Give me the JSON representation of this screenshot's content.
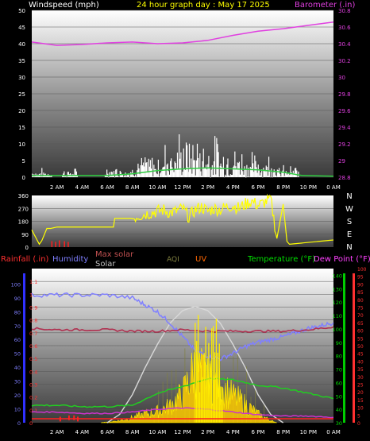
{
  "title": "24 hour graph day : May 17 2025",
  "colors": {
    "wind": "#ffffff",
    "gust_line": "#2ecc40",
    "baro": "#e040e0",
    "wdir": "#ffff00",
    "wdir_red": "#ff2020",
    "rain": "#ff3030",
    "humidity": "#7f7fff",
    "maxsolar": "#c0c0c0",
    "solar": "#ffcc00",
    "uv": "#ff6600",
    "aqi": "#808040",
    "temp": "#00dd00",
    "dew": "#ff40ff",
    "dewbar": "#ff3333",
    "humline": "#8080ff",
    "templine": "#22cc22",
    "dewline": "#cc33cc",
    "maroon": "#b03050"
  },
  "time_labels": [
    "2 AM",
    "4 AM",
    "6 AM",
    "8 AM",
    "10 AM",
    "12 PM",
    "2 PM",
    "4 PM",
    "6 PM",
    "8 PM",
    "10 PM",
    "0 AM"
  ],
  "chart_data": [
    {
      "type": "bar",
      "title": "24 hour graph day : May 17 2025",
      "ylabel_left": "Windspeed (mph)",
      "ylabel_right": "Barometer (.in)",
      "ylim_left": [
        0,
        50
      ],
      "yticks_left": [
        "0",
        "5",
        "10",
        "15",
        "20",
        "25",
        "30",
        "35",
        "40",
        "45",
        "50"
      ],
      "ylim_right": [
        28.8,
        30.8
      ],
      "yticks_right": [
        "28.8",
        "29",
        "29.2",
        "29.4",
        "29.6",
        "29.8",
        "30",
        "30.2",
        "30.4",
        "30.6",
        "30.8"
      ],
      "barometer": {
        "x": [
          0,
          2,
          4,
          6,
          8,
          10,
          12,
          14,
          16,
          18,
          20,
          22,
          24
        ],
        "y": [
          30.42,
          30.38,
          30.39,
          30.41,
          30.42,
          30.4,
          30.41,
          30.44,
          30.5,
          30.55,
          30.58,
          30.62,
          30.66
        ]
      },
      "wind_bursts": [
        {
          "x": [
            0,
            1.6
          ],
          "peak": 3
        },
        {
          "x": [
            2.4,
            3.6
          ],
          "peak": 3
        },
        {
          "x": [
            5.8,
            8
          ],
          "peak": 4
        },
        {
          "x": [
            8,
            10.5
          ],
          "peak": 8
        },
        {
          "x": [
            10.5,
            12.5
          ],
          "peak": 15
        },
        {
          "x": [
            12.5,
            15
          ],
          "peak": 14
        },
        {
          "x": [
            15,
            17
          ],
          "peak": 11
        },
        {
          "x": [
            17,
            19.5
          ],
          "peak": 9
        },
        {
          "x": [
            19.5,
            21.2
          ],
          "peak": 4
        }
      ],
      "gust_avg": {
        "x": [
          0,
          6,
          8,
          10,
          12,
          14,
          16,
          18,
          20,
          21.5,
          24
        ],
        "y": [
          0.5,
          0.5,
          1,
          2,
          2.5,
          2.8,
          2.5,
          2.2,
          1.5,
          0.5,
          0.3
        ]
      }
    },
    {
      "type": "line",
      "series_name": "Wind direction",
      "ylim": [
        0,
        360
      ],
      "yticks": [
        "0",
        "90",
        "180",
        "270",
        "360"
      ],
      "compass_labels": [
        "N",
        "W",
        "S",
        "E",
        "N"
      ],
      "direction": {
        "x": [
          0,
          0.6,
          0.8,
          1.2,
          1.5,
          2,
          4,
          6.5,
          6.6,
          8,
          8.5,
          9,
          9.5,
          10,
          10.5,
          11,
          11.5,
          12,
          12.5,
          13,
          13.5,
          14,
          14.5,
          15,
          15.5,
          16,
          16.5,
          17,
          17.5,
          18,
          18.5,
          19,
          19.5,
          20,
          20.3,
          20.5,
          24
        ],
        "y": [
          120,
          20,
          45,
          130,
          130,
          140,
          140,
          140,
          200,
          200,
          220,
          230,
          240,
          250,
          260,
          240,
          250,
          270,
          210,
          260,
          280,
          250,
          270,
          260,
          280,
          290,
          270,
          300,
          320,
          290,
          310,
          340,
          60,
          300,
          40,
          20,
          50
        ]
      }
    },
    {
      "type": "line",
      "labels": [
        "Rainfall (.in)",
        "Humidity",
        "Max solar",
        "Solar",
        "AQI",
        "UV",
        "Temperature (°F)",
        "Dew Point (°F)"
      ],
      "ylim_rain": [
        0,
        1.2
      ],
      "yticks_rain": [
        "0",
        "0.1",
        "0.2",
        "0.3",
        "0.4",
        "0.5",
        "0.6",
        "0.7",
        "0.8",
        "0.9",
        "1",
        "1.1"
      ],
      "yticks_hum": [
        "0",
        "10",
        "20",
        "30",
        "40",
        "50",
        "60",
        "70",
        "80",
        "90",
        "100"
      ],
      "ylim_temp": [
        30,
        145
      ],
      "yticks_temp": [
        "30",
        "40",
        "50",
        "60",
        "70",
        "80",
        "90",
        "100",
        "110",
        "120",
        "130",
        "140"
      ],
      "yticks_dew": [
        "0",
        "5",
        "10",
        "15",
        "20",
        "25",
        "30",
        "35",
        "40",
        "45",
        "50",
        "55",
        "60",
        "65",
        "70",
        "75",
        "80",
        "85",
        "90",
        "95",
        "100"
      ],
      "humidity": {
        "x": [
          0,
          2,
          4,
          6,
          8,
          9,
          10,
          11,
          12,
          13,
          14,
          15,
          16,
          17,
          18,
          19,
          20,
          21,
          22,
          23,
          24
        ],
        "y": [
          92,
          92,
          92,
          92,
          90,
          85,
          80,
          72,
          62,
          52,
          48,
          46,
          50,
          55,
          58,
          60,
          62,
          65,
          68,
          70,
          72
        ]
      },
      "temperature": {
        "x": [
          0,
          2,
          4,
          6,
          8,
          10,
          12,
          14,
          16,
          18,
          20,
          22,
          24
        ],
        "y": [
          43,
          43,
          42,
          42,
          43,
          52,
          57,
          63,
          62,
          58,
          56,
          52,
          48
        ]
      },
      "dew_point": {
        "x": [
          0,
          2,
          4,
          6,
          8,
          10,
          12,
          14,
          16,
          18,
          20,
          22,
          24
        ],
        "y": [
          38,
          38,
          37,
          37,
          38,
          40,
          41,
          40,
          38,
          36,
          35,
          35,
          34
        ]
      },
      "maroon": {
        "x": [
          0,
          2,
          4,
          6,
          8,
          10,
          12,
          14,
          16,
          18,
          20,
          22,
          24
        ],
        "y": [
          68,
          67,
          67,
          67,
          66,
          66,
          67,
          66,
          66,
          66,
          66,
          67,
          69
        ]
      },
      "max_solar": {
        "x": [
          6,
          7,
          8,
          9,
          10,
          11,
          12,
          13,
          14,
          15,
          16,
          17,
          18,
          19,
          20
        ],
        "y": [
          0,
          60,
          200,
          390,
          560,
          710,
          800,
          830,
          800,
          710,
          560,
          390,
          200,
          60,
          0
        ]
      },
      "solar": {
        "x": [
          5.5,
          6,
          7,
          8,
          9,
          10,
          11,
          12,
          13,
          14,
          15,
          16,
          17,
          18,
          19,
          19.5
        ],
        "y": [
          0,
          5,
          15,
          35,
          60,
          80,
          120,
          200,
          400,
          300,
          260,
          190,
          130,
          60,
          15,
          0
        ]
      },
      "rain_dots": {
        "x": [
          2.2,
          2.9,
          3.3,
          3.6
        ],
        "y": [
          0.01,
          0.02,
          0.02,
          0.01
        ]
      }
    }
  ]
}
